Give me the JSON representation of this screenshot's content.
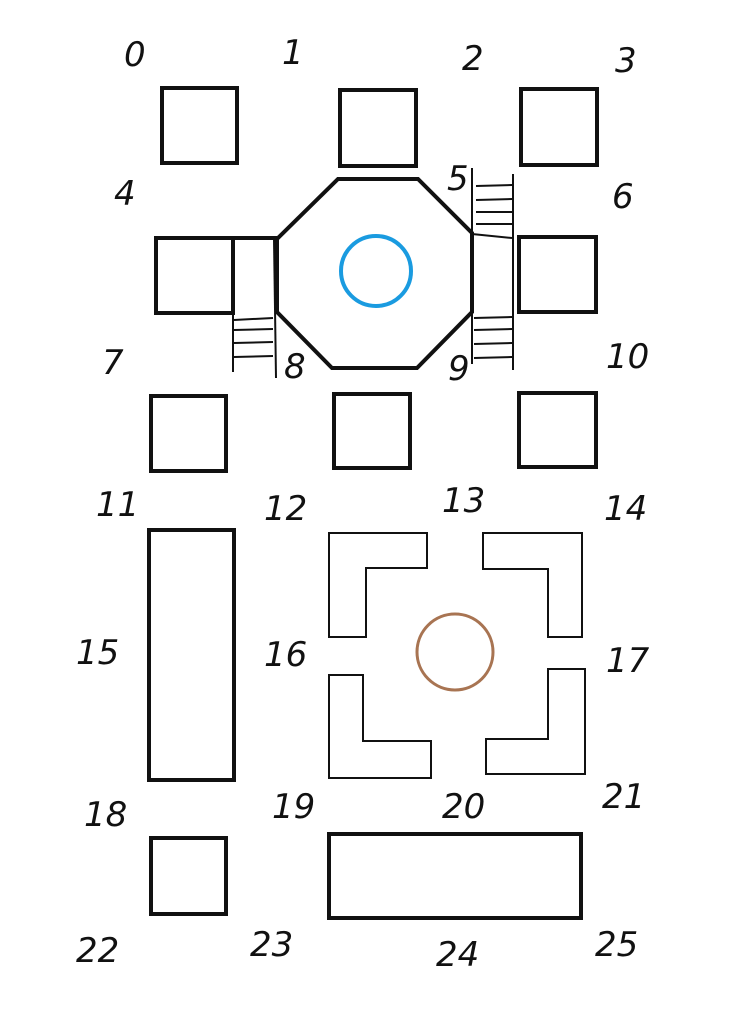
{
  "diagram": {
    "colors": {
      "stroke": "#111111",
      "blue_circle": "#1a9be0",
      "brown_circle": "#a87452",
      "background": "#ffffff"
    },
    "labels": [
      "0",
      "1",
      "2",
      "3",
      "4",
      "5",
      "6",
      "7",
      "8",
      "9",
      "10",
      "11",
      "12",
      "13",
      "14",
      "15",
      "16",
      "17",
      "18",
      "19",
      "20",
      "21",
      "22",
      "23",
      "24",
      "25"
    ]
  }
}
